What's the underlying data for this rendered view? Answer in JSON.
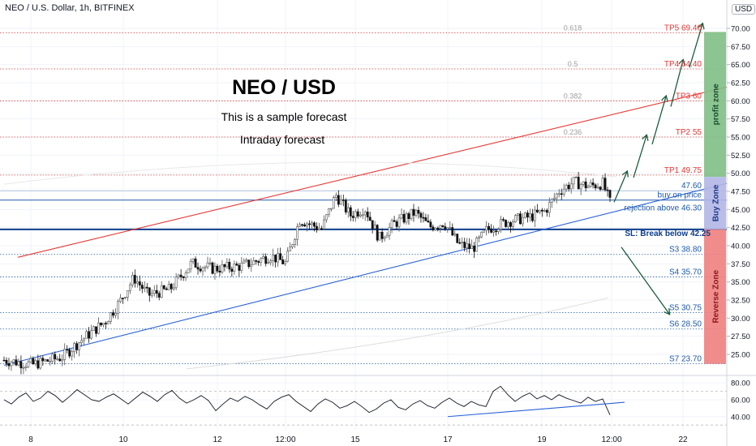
{
  "header": {
    "symbol_line": "NEO / U.S. Dollar, 1h, BITFINEX",
    "scale_button": "USD"
  },
  "annotations": {
    "title": "NEO / USD",
    "subtitle1": "This is a sample forecast",
    "subtitle2": "Intraday forecast"
  },
  "colors": {
    "tp": "#e53935",
    "support": "#1e5aa8",
    "stoploss": "#0d3c8c",
    "profit_zone": "#7fbf86",
    "buy_zone": "#b3b6e6",
    "reverse_zone": "#f08080",
    "fib": "#9e9e9e",
    "arrow": "#1b5e3c",
    "candle_up": "#555555",
    "candle_down": "#111111"
  },
  "chart_data": [
    {
      "type": "candlestick",
      "title": "NEO / U.S. Dollar, 1h, BITFINEX",
      "ylim": [
        23,
        72.5
      ],
      "y_ticks": [
        25.0,
        27.5,
        30.0,
        32.5,
        35.0,
        37.5,
        40.0,
        42.5,
        45.0,
        47.5,
        50.0,
        52.5,
        55.0,
        57.5,
        60.0,
        62.5,
        65.0,
        67.5,
        70.0
      ],
      "x_ticks": [
        "8",
        "10",
        "12",
        "12:00",
        "15",
        "17",
        "19",
        "12:00",
        "22"
      ],
      "grid": true,
      "close_path": [
        {
          "x": 0,
          "y": 24.2
        },
        {
          "x": 4,
          "y": 23.6
        },
        {
          "x": 8,
          "y": 24.6
        },
        {
          "x": 11,
          "y": 27.2
        },
        {
          "x": 14,
          "y": 29.5
        },
        {
          "x": 16,
          "y": 32.2
        },
        {
          "x": 18,
          "y": 35.6
        },
        {
          "x": 20,
          "y": 33.2
        },
        {
          "x": 23,
          "y": 34.0
        },
        {
          "x": 26,
          "y": 37.6
        },
        {
          "x": 29,
          "y": 36.8
        },
        {
          "x": 33,
          "y": 37.2
        },
        {
          "x": 37,
          "y": 38.6
        },
        {
          "x": 39,
          "y": 37.6
        },
        {
          "x": 41,
          "y": 43.6
        },
        {
          "x": 44,
          "y": 42.3
        },
        {
          "x": 46,
          "y": 47.0
        },
        {
          "x": 48,
          "y": 44.2
        },
        {
          "x": 50,
          "y": 45.2
        },
        {
          "x": 52,
          "y": 41.0
        },
        {
          "x": 54,
          "y": 43.0
        },
        {
          "x": 57,
          "y": 44.6
        },
        {
          "x": 59,
          "y": 42.6
        },
        {
          "x": 61,
          "y": 43.2
        },
        {
          "x": 63,
          "y": 40.2
        },
        {
          "x": 65,
          "y": 39.6
        },
        {
          "x": 67,
          "y": 42.3
        },
        {
          "x": 70,
          "y": 43.4
        },
        {
          "x": 73,
          "y": 44.0
        },
        {
          "x": 75,
          "y": 44.8
        },
        {
          "x": 77,
          "y": 47.6
        },
        {
          "x": 79,
          "y": 48.8
        },
        {
          "x": 81,
          "y": 48.2
        },
        {
          "x": 83,
          "y": 48.6
        },
        {
          "x": 84,
          "y": 46.0
        }
      ],
      "levels": [
        {
          "label": "TP5 69.40",
          "value": 69.4,
          "kind": "tp"
        },
        {
          "label": "TP4 64.40",
          "value": 64.4,
          "kind": "tp"
        },
        {
          "label": "TP3 60",
          "value": 60.0,
          "kind": "tp"
        },
        {
          "label": "TP2 55",
          "value": 55.0,
          "kind": "tp"
        },
        {
          "label": "TP1 49.75",
          "value": 49.75,
          "kind": "tp"
        },
        {
          "label": "47.60",
          "value": 47.6,
          "kind": "support"
        },
        {
          "label": "buy on price",
          "value": 46.3,
          "kind": "support"
        },
        {
          "label": "rejection above 46.30",
          "value": 46.3,
          "kind": "support"
        },
        {
          "label": "SL: Break below 42.25",
          "value": 42.25,
          "kind": "stoploss"
        },
        {
          "label": "S3 38.80",
          "value": 38.8,
          "kind": "support"
        },
        {
          "label": "S4 35.70",
          "value": 35.7,
          "kind": "support"
        },
        {
          "label": "S5 30.75",
          "value": 30.75,
          "kind": "support"
        },
        {
          "label": "S6 28.50",
          "value": 28.5,
          "kind": "support"
        },
        {
          "label": "S7 23.70",
          "value": 23.7,
          "kind": "support"
        }
      ],
      "fib_labels": [
        {
          "label": "0.618",
          "value": 69.4
        },
        {
          "label": "0.5",
          "value": 64.4
        },
        {
          "label": "0.382",
          "value": 60.0
        },
        {
          "label": "0.236",
          "value": 55.0
        }
      ],
      "zones": [
        {
          "label": "profit zone",
          "from": 49.5,
          "to": 69.5
        },
        {
          "label": "Buy Zone",
          "from": 42.25,
          "to": 49.5
        },
        {
          "label": "Reverse Zone",
          "from": 23.7,
          "to": 42.25
        }
      ]
    },
    {
      "type": "line",
      "title": "",
      "ylim": [
        34,
        84
      ],
      "y_ticks": [
        40.0,
        60.0,
        80.0
      ],
      "grid": true,
      "series": [
        {
          "values": [
            60,
            55,
            63,
            68,
            58,
            62,
            70,
            65,
            57,
            64,
            72,
            66,
            60,
            58,
            63,
            67,
            61,
            55,
            62,
            69,
            64,
            58,
            66,
            71,
            62,
            56,
            60,
            65,
            59,
            47,
            55,
            62,
            58,
            64,
            60,
            54,
            49,
            58,
            63,
            66,
            58,
            52,
            46,
            55,
            61,
            57,
            50,
            53,
            58,
            52,
            45,
            49,
            56,
            60,
            51,
            48,
            55,
            59,
            53,
            50,
            57,
            62,
            56,
            52,
            58,
            54,
            52,
            70,
            76,
            66,
            58,
            64,
            68,
            61,
            65,
            60,
            66,
            62,
            59,
            56,
            63,
            58,
            61,
            42
          ]
        }
      ]
    }
  ]
}
